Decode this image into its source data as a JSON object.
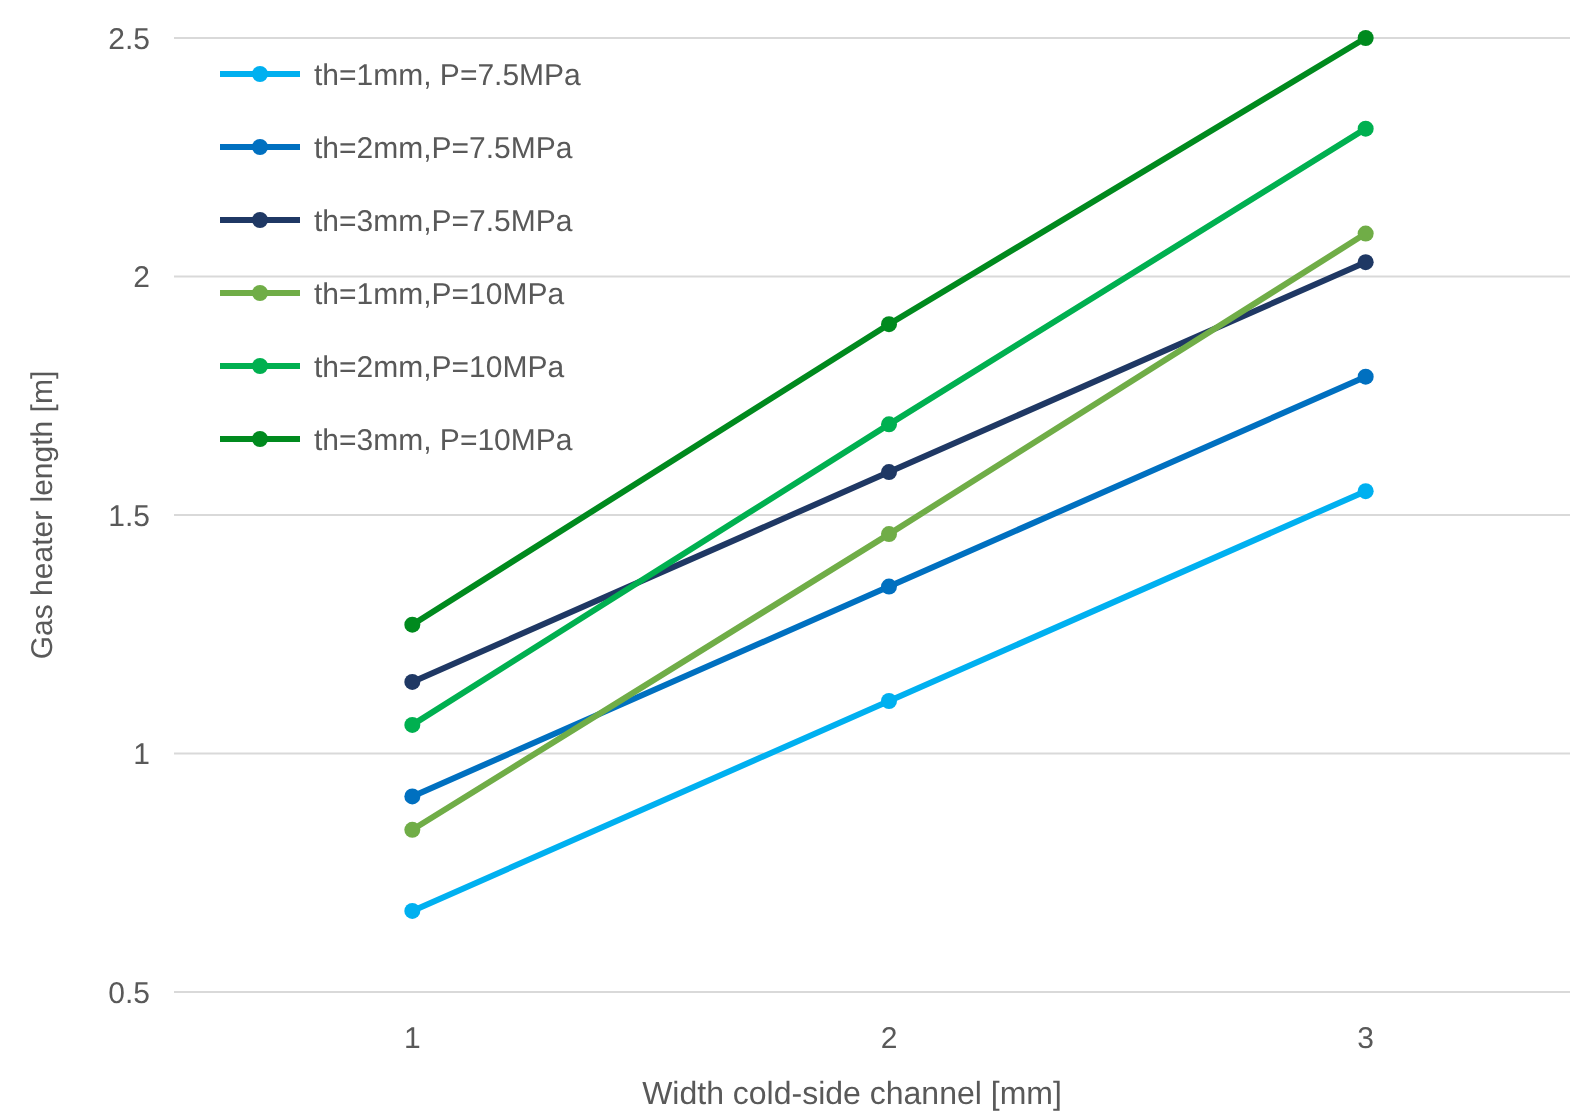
{
  "chart_data": {
    "type": "line",
    "xlabel": "Width cold-side channel [mm]",
    "ylabel": "Gas heater length [m]",
    "categories": [
      "1",
      "2",
      "3"
    ],
    "ylim": [
      0.5,
      2.5
    ],
    "yticks": [
      0.5,
      1,
      1.5,
      2,
      2.5
    ],
    "grid": "y",
    "legend": "top left",
    "marker": "circle",
    "series": [
      {
        "name": "th=1mm, P=7.5MPa",
        "color": "#00b0f0",
        "values": [
          0.67,
          1.11,
          1.55
        ]
      },
      {
        "name": "th=2mm,P=7.5MPa",
        "color": "#0070c0",
        "values": [
          0.91,
          1.35,
          1.79
        ]
      },
      {
        "name": "th=3mm,P=7.5MPa",
        "color": "#1f3864",
        "values": [
          1.15,
          1.59,
          2.03
        ]
      },
      {
        "name": "th=1mm,P=10MPa",
        "color": "#70ad47",
        "values": [
          0.84,
          1.46,
          2.09
        ]
      },
      {
        "name": "th=2mm,P=10MPa",
        "color": "#00b050",
        "values": [
          1.06,
          1.69,
          2.31
        ]
      },
      {
        "name": "th=3mm, P=10MPa",
        "color": "#008a1e",
        "values": [
          1.27,
          1.9,
          2.5
        ]
      }
    ]
  }
}
